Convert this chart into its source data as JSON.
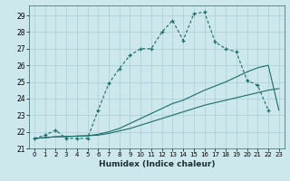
{
  "xlabel": "Humidex (Indice chaleur)",
  "bg_color": "#cde8ec",
  "grid_color": "#aacdd4",
  "line_color": "#1a6b6b",
  "xlim": [
    -0.5,
    23.5
  ],
  "ylim": [
    21.0,
    29.6
  ],
  "xticks": [
    0,
    1,
    2,
    3,
    4,
    5,
    6,
    7,
    8,
    9,
    10,
    11,
    12,
    13,
    14,
    15,
    16,
    17,
    18,
    19,
    20,
    21,
    22,
    23
  ],
  "yticks": [
    21,
    22,
    23,
    24,
    25,
    26,
    27,
    28,
    29
  ],
  "series1_markers": {
    "x": [
      0,
      1,
      2,
      3,
      4,
      5,
      6,
      7,
      8,
      9,
      10,
      11,
      12,
      13,
      14,
      15,
      16,
      17,
      18,
      19,
      20,
      21,
      22
    ],
    "y": [
      21.6,
      21.8,
      22.1,
      21.6,
      21.6,
      21.6,
      23.3,
      24.9,
      25.8,
      26.6,
      27.0,
      27.0,
      28.0,
      28.7,
      27.5,
      29.1,
      29.2,
      27.4,
      27.0,
      26.8,
      25.1,
      24.8,
      23.3
    ]
  },
  "series2_smooth": {
    "x": [
      0,
      1,
      2,
      3,
      4,
      5,
      6,
      7,
      8,
      9,
      10,
      11,
      12,
      13,
      14,
      15,
      16,
      17,
      18,
      19,
      20,
      21,
      22,
      23
    ],
    "y": [
      21.6,
      21.65,
      21.7,
      21.72,
      21.74,
      21.76,
      21.8,
      21.9,
      22.05,
      22.2,
      22.4,
      22.6,
      22.8,
      23.0,
      23.2,
      23.4,
      23.6,
      23.75,
      23.9,
      24.05,
      24.2,
      24.35,
      24.5,
      24.6
    ]
  },
  "series3_smooth": {
    "x": [
      0,
      1,
      2,
      3,
      4,
      5,
      6,
      7,
      8,
      9,
      10,
      11,
      12,
      13,
      14,
      15,
      16,
      17,
      18,
      19,
      20,
      21,
      22,
      23
    ],
    "y": [
      21.6,
      21.65,
      21.7,
      21.72,
      21.74,
      21.76,
      21.85,
      22.0,
      22.2,
      22.5,
      22.8,
      23.1,
      23.4,
      23.7,
      23.9,
      24.2,
      24.5,
      24.75,
      25.0,
      25.3,
      25.6,
      25.85,
      26.0,
      23.3
    ]
  }
}
